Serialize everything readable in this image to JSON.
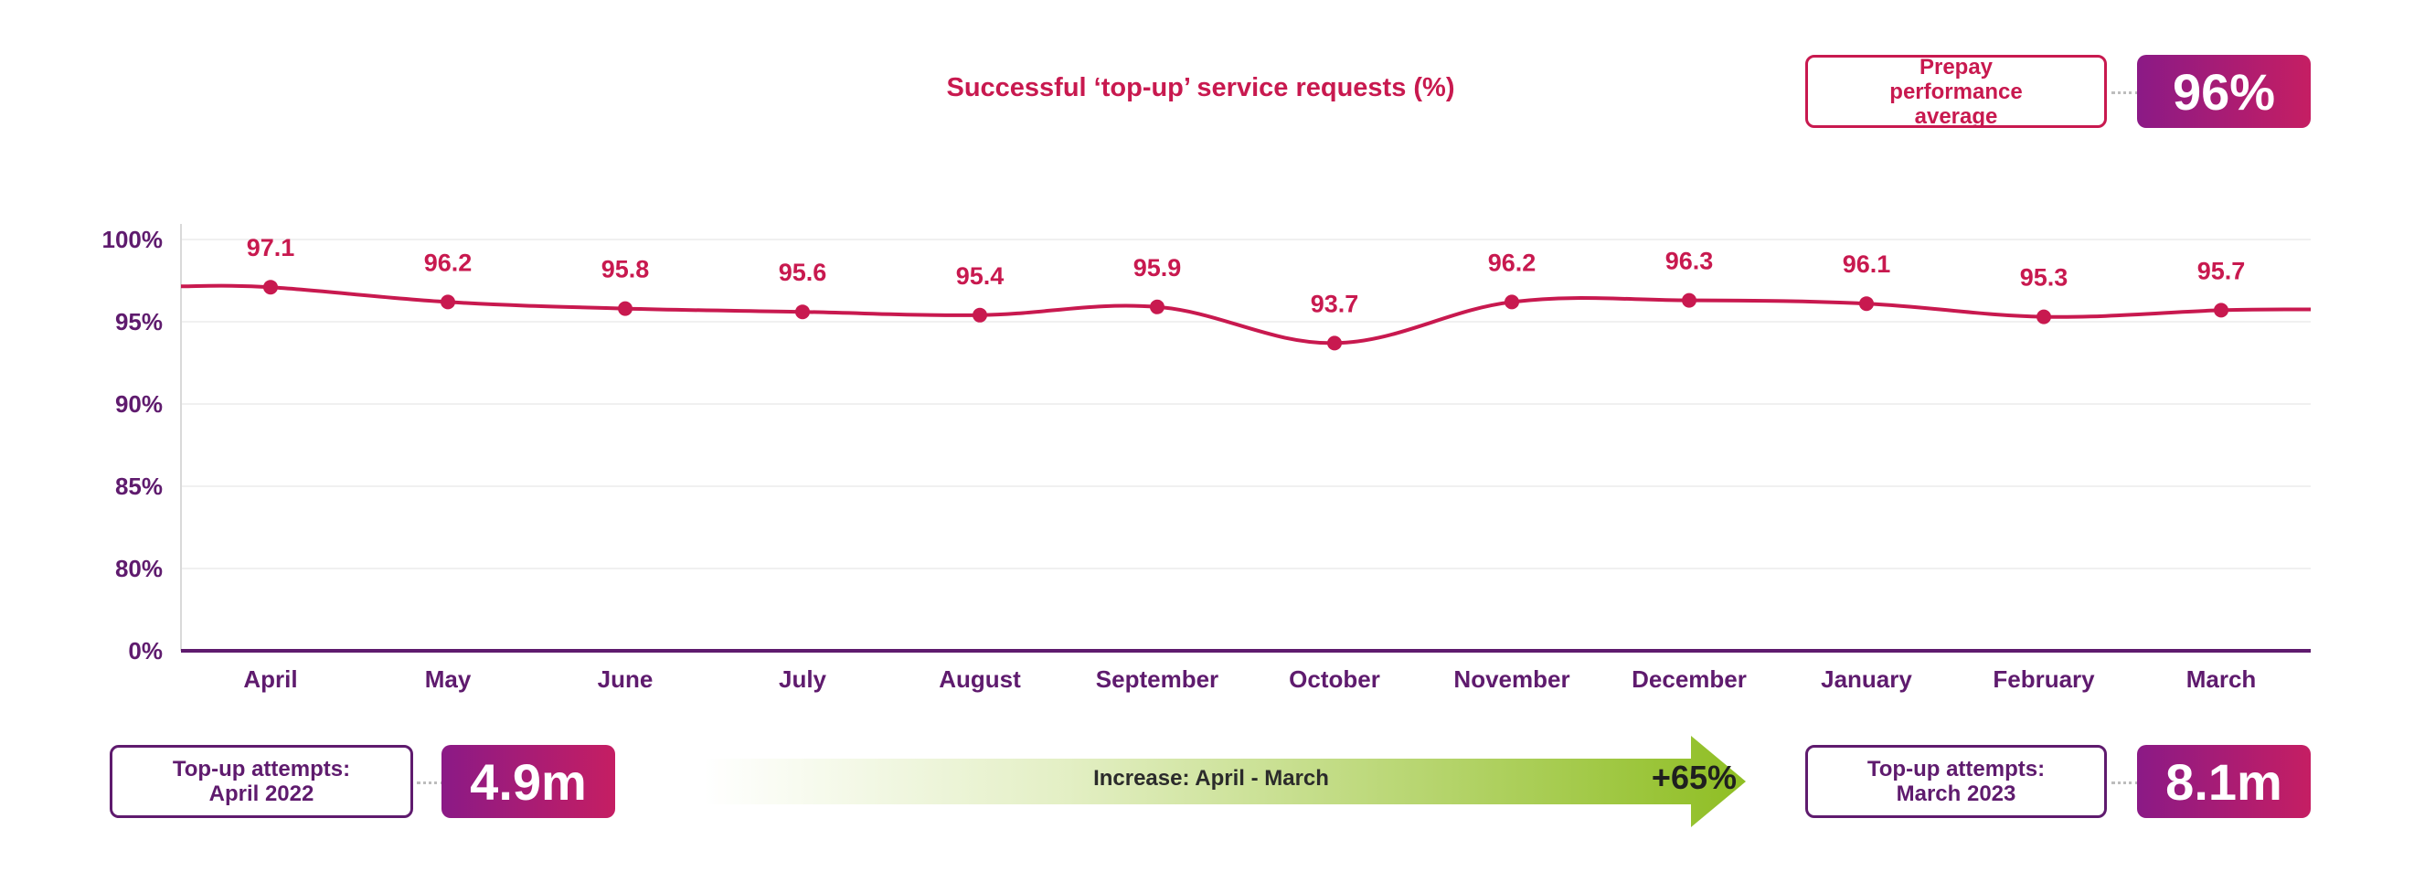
{
  "chart_data": {
    "type": "line",
    "title": "Successful ‘top-up’ service requests (%)",
    "categories": [
      "April",
      "May",
      "June",
      "July",
      "August",
      "September",
      "October",
      "November",
      "December",
      "January",
      "February",
      "March"
    ],
    "series": [
      {
        "name": "Successful top-up requests",
        "values": [
          97.1,
          96.2,
          95.8,
          95.6,
          95.4,
          95.9,
          93.7,
          96.2,
          96.3,
          96.1,
          95.3,
          95.7
        ]
      }
    ],
    "data_labels": [
      "97.1",
      "96.2",
      "95.8",
      "95.6",
      "95.4",
      "95.9",
      "93.7",
      "96.2",
      "96.3",
      "96.1",
      "95.3",
      "95.7"
    ],
    "y_ticks": [
      {
        "label": "100%",
        "value": 100
      },
      {
        "label": "95%",
        "value": 95
      },
      {
        "label": "90%",
        "value": 90
      },
      {
        "label": "85%",
        "value": 85
      },
      {
        "label": "80%",
        "value": 80
      },
      {
        "label": "0%",
        "value": 0
      }
    ],
    "ylim": [
      0,
      100
    ],
    "axis_break": "broken y-axis between 0% and 80%",
    "grid": true,
    "colors": {
      "line": "#c8194f",
      "axis": "#5f1b6e",
      "tick_text": "#5f1b6e",
      "grid": "#ececec"
    }
  },
  "summary": {
    "average_label": "Prepay performance average",
    "average_value": "96%",
    "start_label": "Top-up attempts: April 2022",
    "start_value": "4.9m",
    "end_label": "Top-up attempts: March 2023",
    "end_value": "8.1m",
    "increase_label": "Increase: April - March",
    "increase_value": "+65%"
  },
  "colors": {
    "accent": "#c8194f",
    "purple": "#5f1b6e",
    "green": "#8fbe23"
  }
}
